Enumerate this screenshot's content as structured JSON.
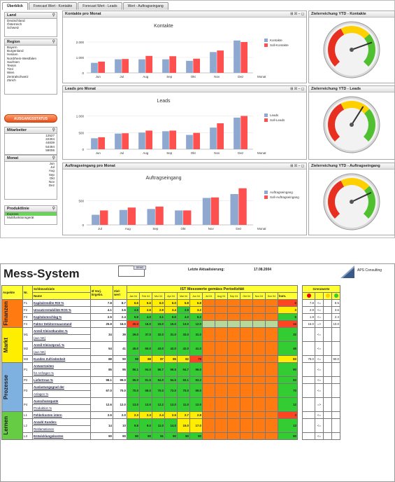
{
  "tabs": [
    "Überblick",
    "Forecast Wert - Kontakte",
    "Forecast Wert - Leads",
    "Wert - Auftragseingang"
  ],
  "filters": {
    "land": {
      "title": "Land",
      "items": [
        "Deutschland",
        "Österreich",
        "Schweiz"
      ]
    },
    "region": {
      "title": "Region",
      "items": [
        "Bayern",
        "Burgenland",
        "Hessen",
        "Nordrhein-Westfalen",
        "Sachsen",
        "Tessin",
        "Tirol",
        "Wien",
        "Zentralschweiz",
        "Zürich"
      ]
    },
    "button": "AUSGANGSSTATUS",
    "mitarbeiter": {
      "title": "Mitarbeiter",
      "items": [
        "12527",
        "22304",
        "44839",
        "54494",
        "59006"
      ]
    },
    "monat": {
      "title": "Monat",
      "items": [
        "Jun",
        "Jul",
        "Aug",
        "Sep",
        "Okt",
        "Nov",
        "Dez"
      ]
    },
    "produktlinie": {
      "title": "Produktlinie",
      "items": [
        "Express",
        "Multifunktionsgerät"
      ]
    }
  },
  "colors": {
    "ist": "#8fa8d0",
    "soll": "#ff5050"
  },
  "charts": [
    {
      "panel_title": "Kontakte pro Monat",
      "chart_data": {
        "type": "bar",
        "title": "Kontakte",
        "categories": [
          "Jun",
          "Jul",
          "Aug",
          "Sep",
          "Okt",
          "Nov",
          "Dez"
        ],
        "series": [
          {
            "name": "Kontakte",
            "values": [
              650,
              880,
              880,
              880,
              780,
              1350,
              2100
            ]
          },
          {
            "name": "Soll-Kontakte",
            "values": [
              730,
              900,
              1100,
              1080,
              920,
              1450,
              2000
            ]
          }
        ],
        "ylim": [
          0,
          2500
        ],
        "yticks": [
          "2.000",
          "1.000",
          "0"
        ],
        "ytick_values": [
          2000,
          1000,
          0
        ],
        "xlabel": "Monat"
      }
    },
    {
      "panel_title": "Leads pro Monat",
      "chart_data": {
        "type": "bar",
        "title": "Leads",
        "categories": [
          "Jun",
          "Jul",
          "Aug",
          "Sep",
          "Okt",
          "Nov",
          "Dez"
        ],
        "series": [
          {
            "name": "Leads",
            "values": [
              330,
              470,
              500,
              540,
              430,
              650,
              950
            ]
          },
          {
            "name": "Soll-Leads",
            "values": [
              360,
              480,
              560,
              560,
              490,
              780,
              1000
            ]
          }
        ],
        "ylim": [
          0,
          1200
        ],
        "yticks": [
          "1.000",
          "500",
          "0"
        ],
        "ytick_values": [
          1000,
          500,
          0
        ],
        "xlabel": "Monat"
      }
    },
    {
      "panel_title": "Auftragseingang pro Monat",
      "chart_data": {
        "type": "bar",
        "title": "Auftragseingang",
        "categories": [
          "Jul",
          "Aug",
          "Sep",
          "Okt",
          "Nov",
          "Dez"
        ],
        "series": [
          {
            "name": "Auftragseingang",
            "values": [
              210,
              310,
              330,
              300,
              560,
              640
            ]
          },
          {
            "name": "Soll-Auftragseingang",
            "values": [
              300,
              360,
              380,
              300,
              570,
              760
            ]
          }
        ],
        "ylim": [
          0,
          800
        ],
        "yticks": [
          "500",
          "0"
        ],
        "ytick_values": [
          500,
          0
        ],
        "xlabel": "Monat"
      }
    }
  ],
  "gauges": [
    {
      "title": "Zielerreichung YTD - Kontakte",
      "value": 0.76
    },
    {
      "title": "Zielerreichung YTD - Leads",
      "value": 0.62
    },
    {
      "title": "Zielerreichung YTD - Auftragseingang",
      "value": 0.74
    }
  ],
  "panel_controls": "⊞ ☒ ‒ ◻",
  "ms": {
    "title": "Mess-System",
    "logo_small": "DEMO",
    "update_label": "Letzte Aktualisierung:",
    "update_date": "17.08.2004",
    "company": "APS Consulting",
    "head": {
      "aspekte": "Aspekte",
      "nr": "Nr.",
      "schluessel": "Schlüsselziele",
      "name": "Name",
      "vorj": "Ø Vorj. Ergebn.",
      "ziel": "Ziel-wert",
      "ist": "IST Messwerte gemäss Periodizität",
      "kum": "kum.",
      "grenz": "Grenzwerte"
    },
    "months": [
      "Jan 04",
      "Feb 04",
      "Mrz 04",
      "Apr 04",
      "Mai 04",
      "Jun 04",
      "Jul 04",
      "Aug 04",
      "Sep 04",
      "Okt 04",
      "Nov 04",
      "Dez 04"
    ],
    "sections": [
      {
        "name": "Finanzen",
        "color": "#ff7a10",
        "rows": [
          {
            "nr": "F1",
            "l1": "Kapitalrendite ROI %",
            "l2": "",
            "vorj": "7.8",
            "ziel": "8.7",
            "vals": [
              "6.6",
              "6.6",
              "6.0",
              "6.0",
              "5.8",
              "6.8"
            ],
            "cls": [
              "c-y",
              "c-y",
              "c-y",
              "c-y",
              "c-y",
              "c-y"
            ],
            "kum": "6",
            "kumc": "c-r",
            "g1": "7.8",
            "g2": "<=",
            "g3": "8.5"
          },
          {
            "nr": "F2",
            "l1": "Umsatzrentabilität ROS %",
            "l2": "",
            "vorj": "4.1",
            "ziel": "3.6",
            "vals": [
              "4.6",
              "2.6",
              "2.9",
              "3.4",
              "3.8",
              "3.2"
            ],
            "cls": [
              "c-g",
              "c-y",
              "c-y",
              "c-y",
              "c-g",
              "c-y"
            ],
            "kum": "3",
            "kumc": "c-y",
            "g1": "2.9",
            "g2": "<=",
            "g3": "3.6"
          },
          {
            "nr": "F3",
            "l1": "Kapitalumschlag %",
            "l2": "",
            "vorj": "2.5",
            "ziel": "2.4",
            "vals": [
              "5.8",
              "4.0",
              "3.1",
              "6.5",
              "4.0",
              "6.2"
            ],
            "cls": [
              "c-g",
              "c-g",
              "c-g",
              "c-g",
              "c-g",
              "c-g"
            ],
            "kum": "5",
            "kumc": "c-g",
            "g1": "1.9",
            "g2": "<=",
            "g3": "2.4"
          },
          {
            "nr": "F4",
            "l1": "Faktor Debitorenausstand",
            "l2": "",
            "vorj": "25.9",
            "ziel": "16.0",
            "vals": [
              "20.0",
              "16.0",
              "15.0",
              "15.0",
              "13.0",
              "12.0"
            ],
            "cls": [
              "c-r",
              "c-g",
              "c-g",
              "c-g",
              "c-g",
              "c-g"
            ],
            "kum": "15",
            "kumc": "c-r",
            "g1": "16.0",
            "g2": "=>",
            "g3": "10.0"
          }
        ]
      },
      {
        "name": "Markt",
        "color": "#ffee00",
        "rows": [
          {
            "nr": "M1",
            "l1": "Anteil Kleinstkunden %",
            "l2": "(aus NK)",
            "vorj": "34",
            "ziel": "39",
            "vals": [
              "29.0",
              "37.0",
              "32.0",
              "31.0",
              "33.0",
              "31.0"
            ],
            "cls": [
              "c-g",
              "c-g",
              "c-g",
              "c-g",
              "c-g",
              "c-g"
            ],
            "kum": "32",
            "kumc": "c-g",
            "g1": "",
            "g2": "<=",
            "g3": ""
          },
          {
            "nr": "M2",
            "l1": "Anteil Kleinstprod. %",
            "l2": "(aus NK)",
            "vorj": "54",
            "ziel": "41",
            "vals": [
              "45.0",
              "65.0",
              "43.0",
              "42.0",
              "42.0",
              "41.0"
            ],
            "cls": [
              "c-g",
              "c-g",
              "c-g",
              "c-g",
              "c-g",
              "c-g"
            ],
            "kum": "46",
            "kumc": "c-g",
            "g1": "",
            "g2": "<=",
            "g3": ""
          },
          {
            "nr": "M3",
            "l1": "Kunden Zufriedenheit",
            "l2": "",
            "vorj": "88",
            "ziel": "90",
            "vals": [
              "98",
              "88",
              "87",
              "85",
              "82",
              "79"
            ],
            "cls": [
              "c-g",
              "c-y",
              "c-y",
              "c-y",
              "c-y",
              "c-r"
            ],
            "kum": "83",
            "kumc": "c-y",
            "g1": "79.0",
            "g2": "<=",
            "g3": "90.0"
          }
        ]
      },
      {
        "name": "Prozesse",
        "color": "#7eb0e0",
        "rows": [
          {
            "nr": "P1",
            "l1": "Antwortzeiten",
            "l2": "für Anfragen %",
            "vorj": "85",
            "ziel": "95",
            "vals": [
              "86.1",
              "94.0",
              "86.7",
              "96.5",
              "94.7",
              "96.0"
            ],
            "cls": [
              "c-g",
              "c-g",
              "c-g",
              "c-g",
              "c-g",
              "c-g"
            ],
            "kum": "90",
            "kumc": "c-g",
            "g1": "",
            "g2": "<=",
            "g3": ""
          },
          {
            "nr": "P2",
            "l1": "Liefertreue %",
            "l2": "",
            "vorj": "98.1",
            "ziel": "99.0",
            "vals": [
              "95.0",
              "91.5",
              "94.0",
              "94.5",
              "93.1",
              "93.2"
            ],
            "cls": [
              "c-g",
              "c-g",
              "c-g",
              "c-g",
              "c-g",
              "c-g"
            ],
            "kum": "93",
            "kumc": "c-g",
            "g1": "",
            "g2": "<=",
            "g3": ""
          },
          {
            "nr": "P3",
            "l1": "Auslastungsgrad der",
            "l2": "Anlagen %",
            "vorj": "67.0",
            "ziel": "70.0",
            "vals": [
              "70.0",
              "68.0",
              "70.0",
              "72.0",
              "70.0",
              "69.0"
            ],
            "cls": [
              "c-g",
              "c-g",
              "c-g",
              "c-g",
              "c-g",
              "c-g"
            ],
            "kum": "70",
            "kumc": "c-g",
            "g1": "",
            "g2": "<=",
            "g3": ""
          },
          {
            "nr": "P4",
            "l1": "Ausschussquote",
            "l2": "Produktion %",
            "vorj": "12.6",
            "ziel": "12.0",
            "vals": [
              "13.0",
              "13.0",
              "12.2",
              "13.0",
              "11.0",
              "12.0"
            ],
            "cls": [
              "c-g",
              "c-g",
              "c-g",
              "c-g",
              "c-g",
              "c-g"
            ],
            "kum": "12",
            "kumc": "c-g",
            "g1": "",
            "g2": "=>",
            "g3": ""
          }
        ]
      },
      {
        "name": "Lernen",
        "color": "#66cc44",
        "rows": [
          {
            "nr": "L1",
            "l1": "Fehlerkosten intern",
            "l2": "",
            "vorj": "2.5",
            "ziel": "2.0",
            "vals": [
              "2.3",
              "2.3",
              "2.4",
              "2.5",
              "2.7",
              "2.8"
            ],
            "cls": [
              "c-y",
              "c-y",
              "c-y",
              "c-y",
              "c-y",
              "c-y"
            ],
            "kum": "3",
            "kumc": "c-r",
            "g1": "",
            "g2": "<=",
            "g3": ""
          },
          {
            "nr": "L2",
            "l1": "Anzahl Kunden-",
            "l2": "Reklamationen",
            "vorj": "14",
            "ziel": "10",
            "vals": [
              "9.8",
              "9.0",
              "11.0",
              "14.0",
              "15.0",
              "17.0"
            ],
            "cls": [
              "c-g",
              "c-g",
              "c-g",
              "c-g",
              "c-y",
              "c-y"
            ],
            "kum": "13",
            "kumc": "c-g",
            "g1": "",
            "g2": "<=",
            "g3": ""
          },
          {
            "nr": "L3",
            "l1": "Entwicklungskosten",
            "l2": "",
            "vorj": "90",
            "ziel": "90",
            "vals": [
              "90",
              "90",
              "91",
              "90",
              "90",
              "90"
            ],
            "cls": [
              "c-g",
              "c-g",
              "c-g",
              "c-g",
              "c-g",
              "c-g"
            ],
            "kum": "90",
            "kumc": "c-g",
            "g1": "",
            "g2": "<=",
            "g3": ""
          }
        ]
      }
    ]
  }
}
